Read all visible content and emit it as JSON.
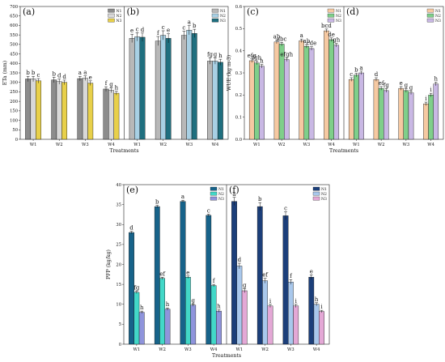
{
  "chart_data": [
    {
      "id": "a",
      "panel_label": "(a)",
      "type": "bar",
      "categories": [
        "W1",
        "W2",
        "W3",
        "W4"
      ],
      "ylabel": "ETa (mm)",
      "xlabel": "Treatments",
      "ylim": [
        0,
        700
      ],
      "yticks": [
        0,
        50,
        100,
        150,
        200,
        250,
        300,
        350,
        400,
        450,
        500,
        550,
        600,
        650,
        700
      ],
      "legend": [
        "N1",
        "N2",
        "N3"
      ],
      "legend_position": "top-right",
      "series": [
        {
          "name": "N1",
          "color": "#8c8c8c",
          "values": [
            318,
            313,
            320,
            265
          ],
          "errors": [
            14,
            14,
            12,
            12
          ],
          "letters": [
            "b",
            "b",
            "a",
            "f"
          ]
        },
        {
          "name": "N2",
          "color": "#d8d8d8",
          "values": [
            318,
            304,
            322,
            258
          ],
          "errors": [
            14,
            14,
            12,
            12
          ],
          "letters": [
            "b",
            "d",
            "a",
            "g"
          ]
        },
        {
          "name": "N3",
          "color": "#e8d04a",
          "values": [
            308,
            300,
            296,
            243
          ],
          "errors": [
            12,
            12,
            12,
            10
          ],
          "letters": [
            "c",
            "d",
            "e",
            "h"
          ]
        }
      ]
    },
    {
      "id": "b",
      "panel_label": "(b)",
      "type": "bar",
      "categories": [
        "W1",
        "W2",
        "W3",
        "W4"
      ],
      "xlabel": "Treatments",
      "ylim": [
        0,
        700
      ],
      "legend": [
        "N1",
        "N2",
        "N3"
      ],
      "legend_position": "top-right",
      "series": [
        {
          "name": "N1",
          "color": "#b8b8b8",
          "values": [
            532,
            518,
            548,
            412
          ],
          "errors": [
            22,
            24,
            22,
            16
          ],
          "letters": [
            "e",
            "f",
            "c",
            "fg"
          ]
        },
        {
          "name": "N2",
          "color": "#a8d0e4",
          "values": [
            540,
            548,
            575,
            412
          ],
          "errors": [
            22,
            24,
            24,
            16
          ],
          "letters": [
            "c",
            "c",
            "a",
            "g"
          ]
        },
        {
          "name": "N3",
          "color": "#1f6f7f",
          "values": [
            538,
            532,
            558,
            406
          ],
          "errors": [
            22,
            24,
            22,
            16
          ],
          "letters": [
            "d",
            "e",
            "b",
            "h"
          ]
        }
      ]
    },
    {
      "id": "c",
      "panel_label": "(c)",
      "type": "bar",
      "categories": [
        "W1",
        "W2",
        "W3",
        "W4"
      ],
      "ylabel": "WUE (kg m-3)",
      "xlabel": "Treatments",
      "ylim": [
        0.0,
        0.6
      ],
      "yticks": [
        0.0,
        0.1,
        0.2,
        0.3,
        0.4,
        0.5,
        0.6
      ],
      "legend": [
        "N1",
        "N2",
        "N3"
      ],
      "legend_position": "top-right",
      "series": [
        {
          "name": "N1",
          "color": "#f6c9a2",
          "values": [
            0.355,
            0.44,
            0.445,
            0.49
          ],
          "errors": [
            0.008,
            0.008,
            0.008,
            0.008
          ],
          "letters": [
            "efg",
            "ab",
            "a",
            "bcd"
          ]
        },
        {
          "name": "N2",
          "color": "#7fcf8a",
          "values": [
            0.345,
            0.43,
            0.42,
            0.45
          ],
          "errors": [
            0.008,
            0.008,
            0.008,
            0.008
          ],
          "letters": [
            "fgh",
            "abc",
            "ab",
            "de"
          ]
        },
        {
          "name": "N3",
          "color": "#c9b8e4",
          "values": [
            0.33,
            0.36,
            0.41,
            0.425
          ],
          "errors": [
            0.008,
            0.008,
            0.008,
            0.008
          ],
          "letters": [
            "h",
            "efgh",
            "cde",
            "gh"
          ]
        }
      ]
    },
    {
      "id": "d",
      "panel_label": "(d)",
      "type": "bar",
      "categories": [
        "W1",
        "W2",
        "W3",
        "W4"
      ],
      "xlabel": "Treatments",
      "ylim": [
        0.0,
        0.6
      ],
      "legend": [
        "N1",
        "N2",
        "N3"
      ],
      "legend_position": "top-right",
      "series": [
        {
          "name": "N1",
          "color": "#f6c9a2",
          "values": [
            0.27,
            0.27,
            0.23,
            0.16
          ],
          "errors": [
            0.008,
            0.008,
            0.008,
            0.008
          ],
          "letters": [
            "c",
            "d",
            "e",
            "i"
          ]
        },
        {
          "name": "N2",
          "color": "#7fcf8a",
          "values": [
            0.29,
            0.23,
            0.22,
            0.2
          ],
          "errors": [
            0.008,
            0.008,
            0.008,
            0.008
          ],
          "letters": [
            "b",
            "ef",
            "g",
            "i"
          ]
        },
        {
          "name": "N3",
          "color": "#c9b8e4",
          "values": [
            0.3,
            0.22,
            0.21,
            0.25
          ],
          "errors": [
            0.008,
            0.008,
            0.008,
            0.008
          ],
          "letters": [
            "a",
            "fg",
            "g",
            "h"
          ]
        }
      ]
    },
    {
      "id": "e",
      "panel_label": "(e)",
      "type": "bar",
      "categories": [
        "W1",
        "W2",
        "W3",
        "W4"
      ],
      "ylabel": "PFP (kg/kg)",
      "xlabel": "Treatments",
      "ylim": [
        0,
        40
      ],
      "yticks": [
        0,
        5,
        10,
        15,
        20,
        25,
        30,
        35,
        40
      ],
      "legend": [
        "N1",
        "N2",
        "N3"
      ],
      "legend_position": "top-right",
      "series": [
        {
          "name": "N1",
          "color": "#17638a",
          "values": [
            28.0,
            34.5,
            35.8,
            32.3
          ],
          "errors": [
            0.3,
            0.3,
            0.3,
            0.3
          ],
          "letters": [
            "d",
            "b",
            "a",
            "c"
          ]
        },
        {
          "name": "N2",
          "color": "#42d8c8",
          "values": [
            13.0,
            16.5,
            16.8,
            14.7
          ],
          "errors": [
            0.3,
            0.3,
            0.3,
            0.3
          ],
          "letters": [
            "fg",
            "ef",
            "e",
            "f"
          ]
        },
        {
          "name": "N3",
          "color": "#8f94dc",
          "values": [
            8.0,
            8.8,
            9.8,
            8.3
          ],
          "errors": [
            0.3,
            0.3,
            0.3,
            0.3
          ],
          "letters": [
            "h",
            "h",
            "g",
            "h"
          ]
        }
      ]
    },
    {
      "id": "f",
      "panel_label": "(f)",
      "type": "bar",
      "categories": [
        "W1",
        "W2",
        "W3",
        "W4"
      ],
      "xlabel": "Treatments",
      "ylim": [
        0,
        40
      ],
      "legend": [
        "N1",
        "N2",
        "N3"
      ],
      "legend_position": "top-right",
      "series": [
        {
          "name": "N1",
          "color": "#1c3f7a",
          "values": [
            35.8,
            34.5,
            32.2,
            16.8
          ],
          "errors": [
            1.0,
            1.0,
            1.0,
            0.6
          ],
          "letters": [
            "a",
            "b",
            "c",
            "e"
          ]
        },
        {
          "name": "N2",
          "color": "#a9c8ec",
          "values": [
            19.6,
            15.9,
            15.6,
            10.0
          ],
          "errors": [
            0.7,
            0.6,
            0.6,
            0.4
          ],
          "letters": [
            "d",
            "ef",
            "f",
            "h"
          ]
        },
        {
          "name": "N3",
          "color": "#e4a8d6",
          "values": [
            13.4,
            9.6,
            9.6,
            8.2
          ],
          "errors": [
            0.5,
            0.4,
            0.4,
            0.3
          ],
          "letters": [
            "g",
            "i",
            "i",
            "i"
          ]
        }
      ]
    }
  ]
}
